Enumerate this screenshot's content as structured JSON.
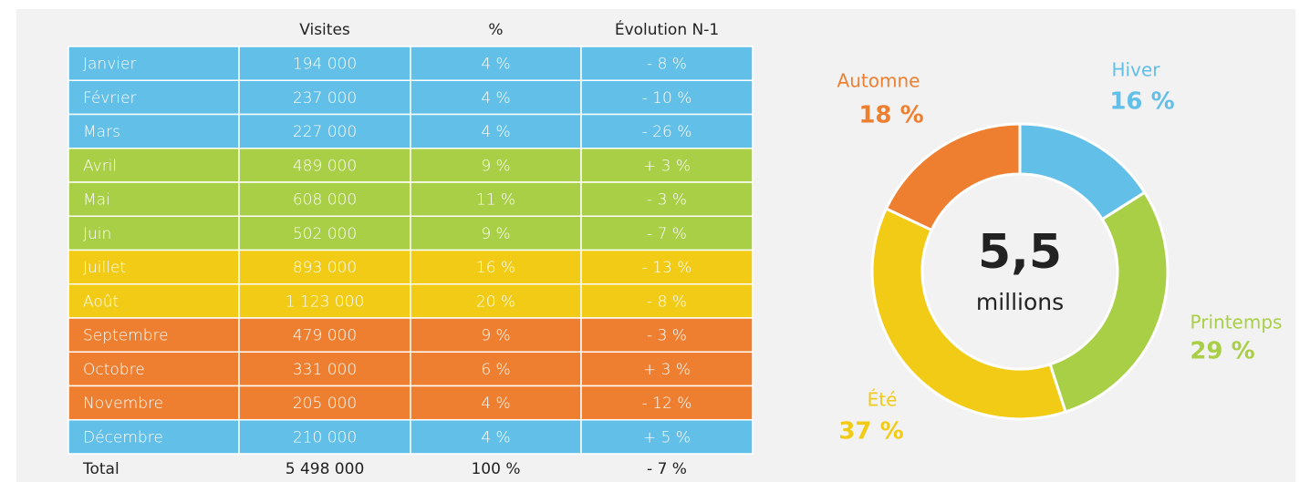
{
  "table": {
    "header": [
      "Visites",
      "%",
      "Évolution N-1"
    ],
    "rows": [
      [
        "Janvier",
        "194 000",
        "4 %",
        "- 8 %"
      ],
      [
        "Février",
        "237 000",
        "4 %",
        "- 10 %"
      ],
      [
        "Mars",
        "227 000",
        "4 %",
        "- 26 %"
      ],
      [
        "Avril",
        "489 000",
        "9 %",
        "+ 3 %"
      ],
      [
        "Mai",
        "608 000",
        "11 %",
        "- 3 %"
      ],
      [
        "Juin",
        "502 000",
        "9 %",
        "- 7 %"
      ],
      [
        "Juillet",
        "893 000",
        "16 %",
        "- 13 %"
      ],
      [
        "Août",
        "1 123 000",
        "20 %",
        "- 8 %"
      ],
      [
        "Septembre",
        "479 000",
        "9 %",
        "- 3 %"
      ],
      [
        "Octobre",
        "331 000",
        "6 %",
        "+ 3 %"
      ],
      [
        "Novembre",
        "205 000",
        "4 %",
        "- 12 %"
      ],
      [
        "Décembre",
        "210 000",
        "4 %",
        "+ 5 %"
      ]
    ],
    "row_colors": [
      "#62bfe8",
      "#62bfe8",
      "#62bfe8",
      "#a8cf45",
      "#a8cf45",
      "#a8cf45",
      "#f2cb16",
      "#f2cb16",
      "#ee7f30",
      "#ee7f30",
      "#ee7f30",
      "#62bfe8"
    ],
    "total": [
      "Total",
      "5 498 000",
      "100 %",
      "- 7 %"
    ]
  },
  "chart_data": {
    "type": "donut",
    "categories": [
      "Hiver",
      "Printemps",
      "Été",
      "Automne"
    ],
    "values": [
      16,
      29,
      37,
      18
    ],
    "value_labels": [
      "16 %",
      "29 %",
      "37 %",
      "18 %"
    ],
    "colors": [
      "#62bfe8",
      "#a8cf45",
      "#f2cb16",
      "#ee7f30"
    ],
    "center_value": "5,5",
    "center_label": "millions"
  }
}
